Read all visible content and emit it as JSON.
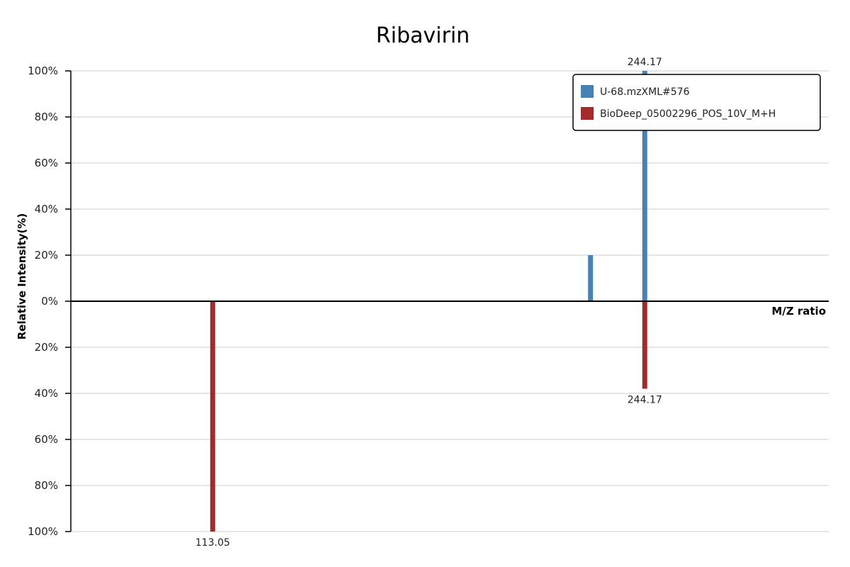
{
  "chart_data": {
    "type": "bar",
    "subtype": "mirror-mass-spectrum",
    "title": "Ribavirin",
    "xlabel": "M/Z ratio",
    "ylabel": "Relative Intensity(%)",
    "xlim": [
      70,
      300
    ],
    "ylim": [
      -100,
      100
    ],
    "yticks": [
      {
        "value": 100,
        "label": "100%"
      },
      {
        "value": 80,
        "label": "80%"
      },
      {
        "value": 60,
        "label": "60%"
      },
      {
        "value": 40,
        "label": "40%"
      },
      {
        "value": 20,
        "label": "20%"
      },
      {
        "value": 0,
        "label": "0%"
      },
      {
        "value": -20,
        "label": "20%"
      },
      {
        "value": -40,
        "label": "40%"
      },
      {
        "value": -60,
        "label": "60%"
      },
      {
        "value": -80,
        "label": "80%"
      },
      {
        "value": -100,
        "label": "100%"
      }
    ],
    "grid": true,
    "legend_position": "top-right",
    "series": [
      {
        "name": "U-68.mzXML#576",
        "color": "#4682b4",
        "direction": "up",
        "peaks": [
          {
            "mz": 227.7,
            "intensity": 20,
            "label": ""
          },
          {
            "mz": 244.17,
            "intensity": 100,
            "label": "244.17"
          }
        ]
      },
      {
        "name": "BioDeep_05002296_POS_10V_M+H",
        "color": "#a52a2a",
        "direction": "down",
        "peaks": [
          {
            "mz": 113.05,
            "intensity": 100,
            "label": "113.05"
          },
          {
            "mz": 244.17,
            "intensity": 38,
            "label": "244.17"
          }
        ]
      }
    ]
  }
}
